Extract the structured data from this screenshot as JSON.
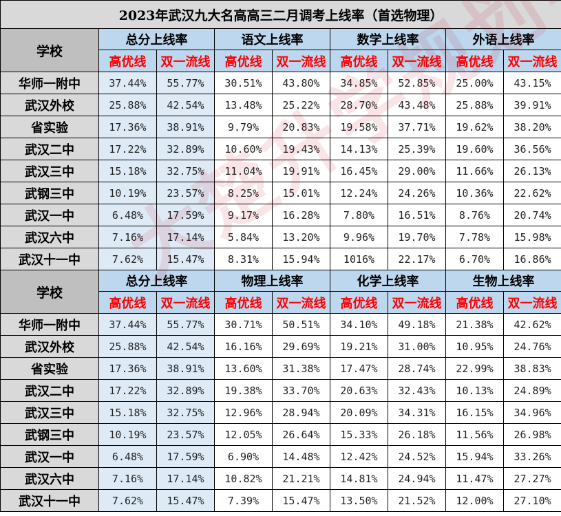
{
  "title": "2023年武汉九大名高高三二月调考上线率（首选物理）",
  "watermark": "大楚升学规划中",
  "colors": {
    "header_gray": "#d9d9d9",
    "header_blue": "#bdd7ee",
    "cell_blue": "#deebf7",
    "label_red": "#ff0000"
  },
  "section1": {
    "school_header": "学校",
    "groups": [
      "总分上线率",
      "语文上线率",
      "数学上线率",
      "外语上线率"
    ],
    "sub": [
      "高优线",
      "双一流线",
      "高优线",
      "双一流线",
      "高优线",
      "双一流线",
      "高优线",
      "双一流线"
    ],
    "rows": [
      {
        "school": "华师一附中",
        "values": [
          "37.44%",
          "55.77%",
          "30.51%",
          "43.80%",
          "34.85%",
          "52.85%",
          "25.00%",
          "43.15%"
        ]
      },
      {
        "school": "武汉外校",
        "values": [
          "25.88%",
          "42.54%",
          "13.48%",
          "25.22%",
          "28.70%",
          "43.48%",
          "25.88%",
          "39.91%"
        ]
      },
      {
        "school": "省实验",
        "values": [
          "17.36%",
          "38.91%",
          "9.79%",
          "20.83%",
          "19.58%",
          "37.71%",
          "19.62%",
          "38.20%"
        ]
      },
      {
        "school": "武汉二中",
        "values": [
          "17.22%",
          "32.89%",
          "10.60%",
          "19.43%",
          "14.13%",
          "25.39%",
          "19.60%",
          "36.56%"
        ]
      },
      {
        "school": "武汉三中",
        "values": [
          "15.18%",
          "32.75%",
          "11.04%",
          "19.91%",
          "16.45%",
          "29.00%",
          "11.66%",
          "26.13%"
        ]
      },
      {
        "school": "武钢三中",
        "values": [
          "10.19%",
          "23.57%",
          "8.25%",
          "15.01%",
          "12.24%",
          "24.26%",
          "10.36%",
          "22.62%"
        ]
      },
      {
        "school": "武汉一中",
        "values": [
          "6.48%",
          "17.59%",
          "9.17%",
          "16.28%",
          "7.80%",
          "16.51%",
          "8.76%",
          "20.74%"
        ]
      },
      {
        "school": "武汉六中",
        "values": [
          "7.16%",
          "17.14%",
          "5.84%",
          "13.20%",
          "9.96%",
          "19.70%",
          "7.78%",
          "15.98%"
        ]
      },
      {
        "school": "武汉十一中",
        "values": [
          "7.62%",
          "15.47%",
          "8.31%",
          "15.94%",
          "1016%",
          "22.17%",
          "6.70%",
          "16.86%"
        ]
      }
    ]
  },
  "section2": {
    "school_header": "学校",
    "groups": [
      "总分上线率",
      "物理上线率",
      "化学上线率",
      "生物上线率"
    ],
    "sub": [
      "高优线",
      "双一流线",
      "高优线",
      "双一流线",
      "高优线",
      "双一流线",
      "高优线",
      "双一流线"
    ],
    "rows": [
      {
        "school": "华师一附中",
        "values": [
          "37.44%",
          "55.77%",
          "30.71%",
          "50.51%",
          "34.10%",
          "49.18%",
          "21.38%",
          "42.62%"
        ]
      },
      {
        "school": "武汉外校",
        "values": [
          "25.88%",
          "42.54%",
          "16.16%",
          "29.69%",
          "19.21%",
          "31.00%",
          "10.95%",
          "24.76%"
        ]
      },
      {
        "school": "省实验",
        "values": [
          "17.36%",
          "38.91%",
          "13.60%",
          "31.38%",
          "17.47%",
          "28.74%",
          "22.99%",
          "38.83%"
        ]
      },
      {
        "school": "武汉二中",
        "values": [
          "17.22%",
          "32.89%",
          "19.38%",
          "33.70%",
          "20.63%",
          "32.43%",
          "10.13%",
          "24.89%"
        ]
      },
      {
        "school": "武汉三中",
        "values": [
          "15.18%",
          "32.75%",
          "12.96%",
          "28.94%",
          "20.09%",
          "34.31%",
          "16.15%",
          "34.96%"
        ]
      },
      {
        "school": "武钢三中",
        "values": [
          "10.19%",
          "23.57%",
          "12.05%",
          "26.64%",
          "15.33%",
          "26.18%",
          "11.56%",
          "26.98%"
        ]
      },
      {
        "school": "武汉一中",
        "values": [
          "6.48%",
          "17.59%",
          "6.90%",
          "14.48%",
          "12.42%",
          "24.52%",
          "15.94%",
          "33.26%"
        ]
      },
      {
        "school": "武汉六中",
        "values": [
          "7.16%",
          "17.14%",
          "10.82%",
          "21.21%",
          "14.81%",
          "24.94%",
          "11.47%",
          "27.27%"
        ]
      },
      {
        "school": "武汉十一中",
        "values": [
          "7.62%",
          "15.47%",
          "7.39%",
          "15.47%",
          "13.50%",
          "21.52%",
          "12.00%",
          "27.10%"
        ]
      }
    ]
  }
}
